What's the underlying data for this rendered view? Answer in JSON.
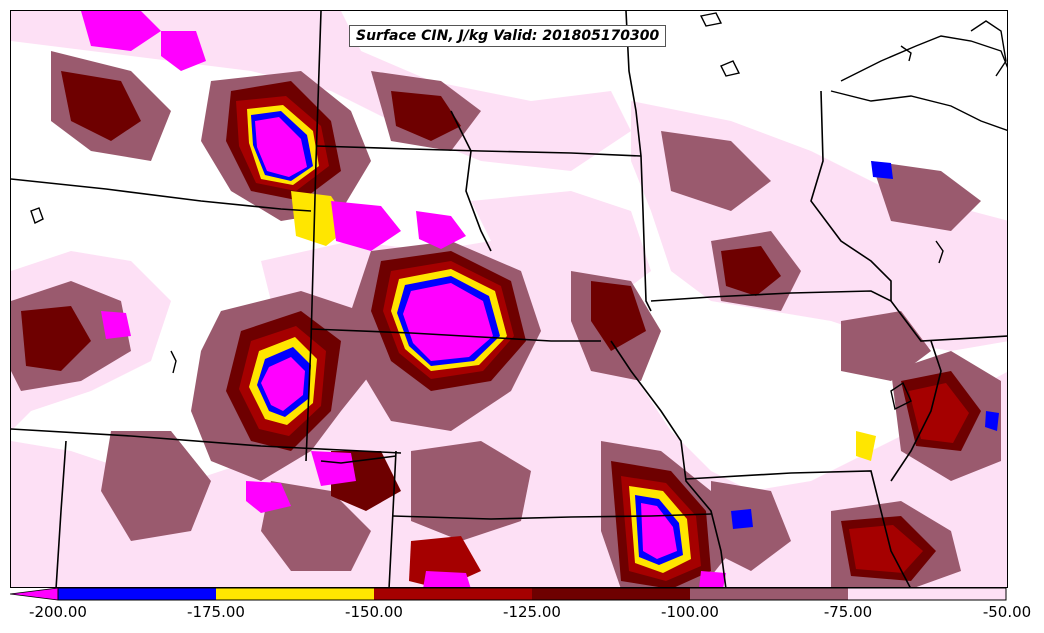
{
  "map": {
    "title": "Surface CIN, J/kg Valid: 201805170300"
  },
  "legend": {
    "ticks": [
      "-200.00",
      "-175.00",
      "-150.00",
      "-125.00",
      "-100.00",
      "-75.00",
      "-50.00"
    ],
    "colors": [
      {
        "range": "< -200",
        "color": "#ff00ff"
      },
      {
        "range": "-200 to -175",
        "color": "#0000ff"
      },
      {
        "range": "-175 to -150",
        "color": "#ffe600"
      },
      {
        "range": "-150 to -125",
        "color": "#a50000"
      },
      {
        "range": "-125 to -100",
        "color": "#6e0000"
      },
      {
        "range": "-100 to -75",
        "color": "#9a5a6e"
      },
      {
        "range": "-75 to -50",
        "color": "#fde0f5"
      }
    ]
  }
}
